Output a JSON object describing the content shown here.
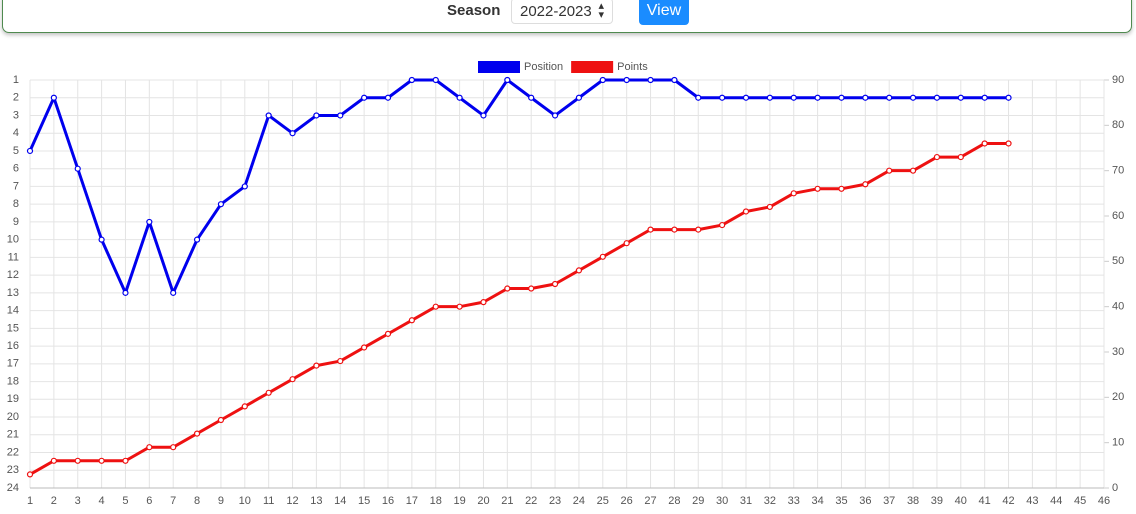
{
  "controls": {
    "season_label": "Season",
    "season_value": "2022-2023",
    "button": "View"
  },
  "chart_data": {
    "type": "line",
    "x": [
      1,
      2,
      3,
      4,
      5,
      6,
      7,
      8,
      9,
      10,
      11,
      12,
      13,
      14,
      15,
      16,
      17,
      18,
      19,
      20,
      21,
      22,
      23,
      24,
      25,
      26,
      27,
      28,
      29,
      30,
      31,
      32,
      33,
      34,
      35,
      36,
      37,
      38,
      39,
      40,
      41,
      42
    ],
    "xlim": [
      1,
      46
    ],
    "xticks": [
      1,
      2,
      3,
      4,
      5,
      6,
      7,
      8,
      9,
      10,
      11,
      12,
      13,
      14,
      15,
      16,
      17,
      18,
      19,
      20,
      21,
      22,
      23,
      24,
      25,
      26,
      27,
      28,
      29,
      30,
      31,
      32,
      33,
      34,
      35,
      36,
      37,
      38,
      39,
      40,
      41,
      42,
      43,
      44,
      45,
      46
    ],
    "ylim": [
      24,
      1
    ],
    "yticks": [
      1,
      2,
      3,
      4,
      5,
      6,
      7,
      8,
      9,
      10,
      11,
      12,
      13,
      14,
      15,
      16,
      17,
      18,
      19,
      20,
      21,
      22,
      23,
      24
    ],
    "y2lim": [
      0,
      90
    ],
    "y2ticks": [
      0,
      10,
      20,
      30,
      40,
      50,
      60,
      70,
      80,
      90
    ],
    "grid": true,
    "legend": "top",
    "series": [
      {
        "name": "Position",
        "color": "#0000ee",
        "values": [
          5,
          2,
          6,
          10,
          13,
          9,
          13,
          10,
          8,
          7,
          3,
          4,
          3,
          3,
          2,
          2,
          1,
          1,
          2,
          3,
          1,
          2,
          3,
          2,
          1,
          1,
          1,
          1,
          2,
          2,
          2,
          2,
          2,
          2,
          2,
          2,
          2,
          2,
          2,
          2,
          2,
          2
        ]
      },
      {
        "name": "Points",
        "color": "#ee1111",
        "axis": "y2",
        "values": [
          3,
          6,
          6,
          6,
          6,
          9,
          9,
          12,
          15,
          18,
          21,
          24,
          27,
          28,
          31,
          34,
          37,
          40,
          40,
          41,
          44,
          44,
          45,
          48,
          51,
          54,
          57,
          57,
          57,
          58,
          61,
          62,
          65,
          66,
          66,
          67,
          70,
          70,
          73,
          73,
          76,
          76
        ]
      }
    ]
  }
}
